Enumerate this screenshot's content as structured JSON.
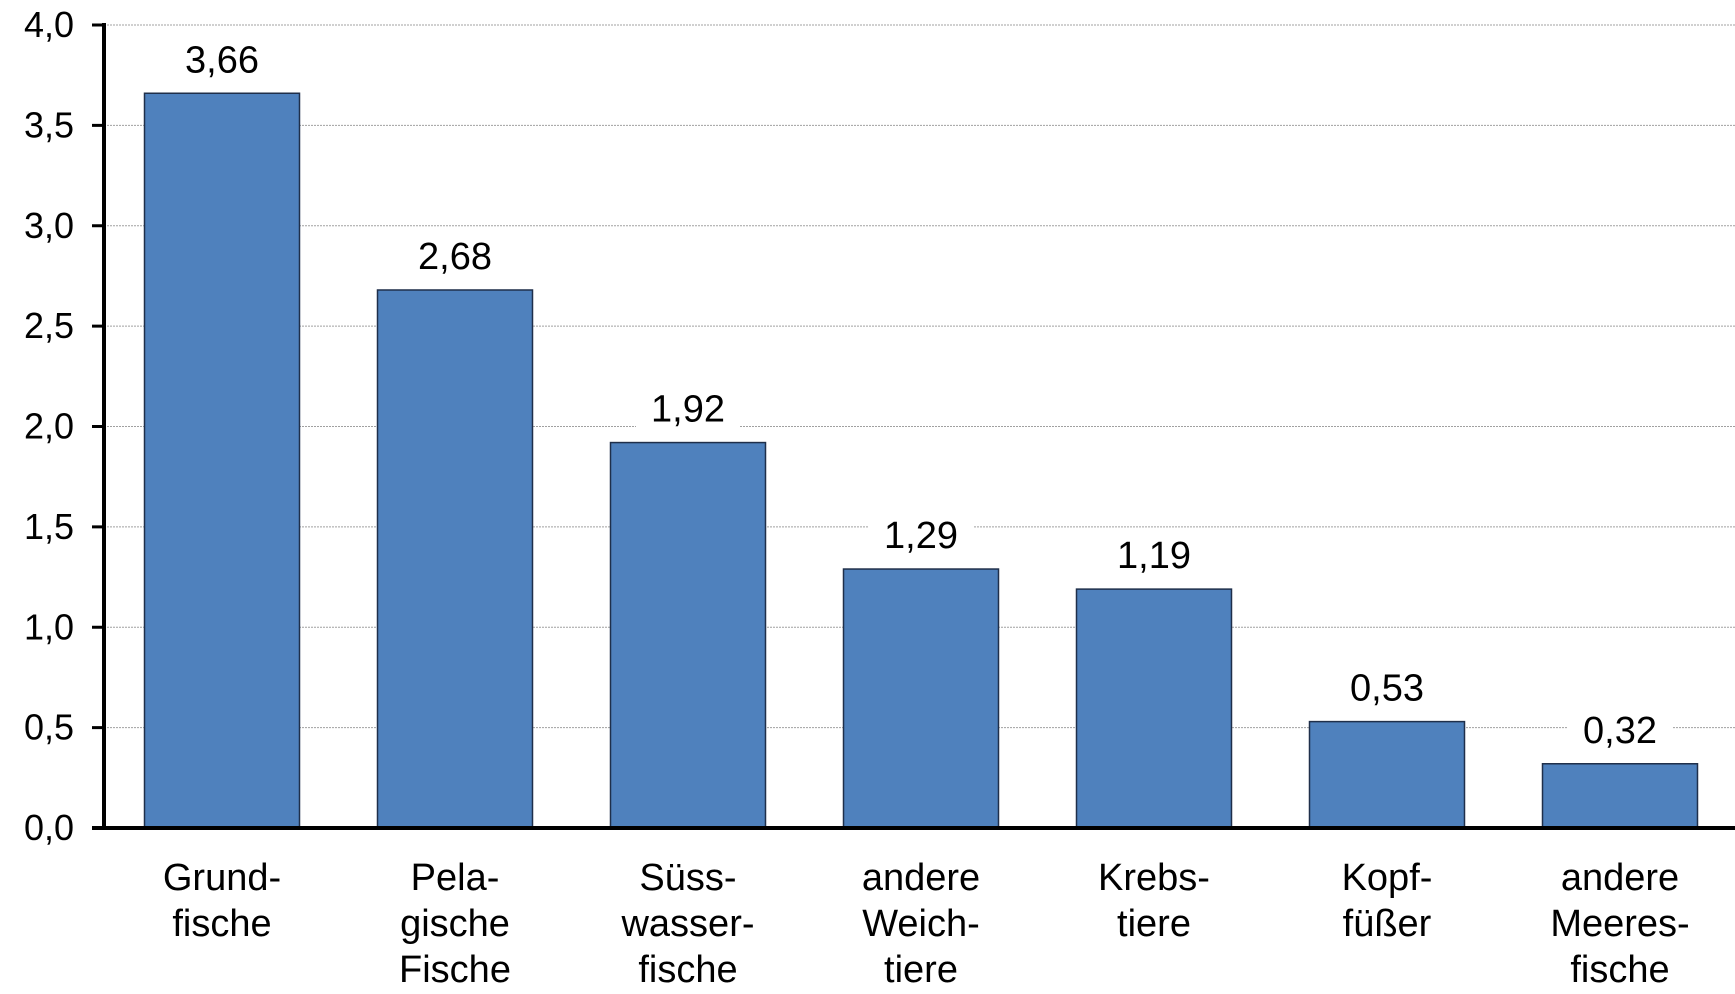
{
  "chart_data": {
    "type": "bar",
    "title": "",
    "xlabel": "",
    "ylabel": "",
    "categories": [
      [
        "Grund-",
        "fische"
      ],
      [
        "Pela-",
        "gische",
        "Fische"
      ],
      [
        "Süss-",
        "wasser-",
        "fische"
      ],
      [
        "andere",
        "Weich-",
        "tiere"
      ],
      [
        "Krebs-",
        "tiere"
      ],
      [
        "Kopf-",
        "füßer"
      ],
      [
        "andere",
        "Meeres-",
        "fische"
      ]
    ],
    "values": [
      3.66,
      2.68,
      1.92,
      1.29,
      1.19,
      0.53,
      0.32
    ],
    "value_labels": [
      "3,66",
      "2,68",
      "1,92",
      "1,29",
      "1,19",
      "0,53",
      "0,32"
    ],
    "ylim": [
      0,
      4.0
    ],
    "yticks": [
      0.0,
      0.5,
      1.0,
      1.5,
      2.0,
      2.5,
      3.0,
      3.5,
      4.0
    ],
    "ytick_labels": [
      "0,0",
      "0,5",
      "1,0",
      "1,5",
      "2,0",
      "2,5",
      "3,0",
      "3,5",
      "4,0"
    ],
    "grid": true,
    "legend": "none",
    "colors": {
      "bar_fill": "#4f81bd",
      "bar_stroke": "#1f2f4a",
      "axis": "#000000",
      "grid": "#a0a0a0"
    }
  }
}
